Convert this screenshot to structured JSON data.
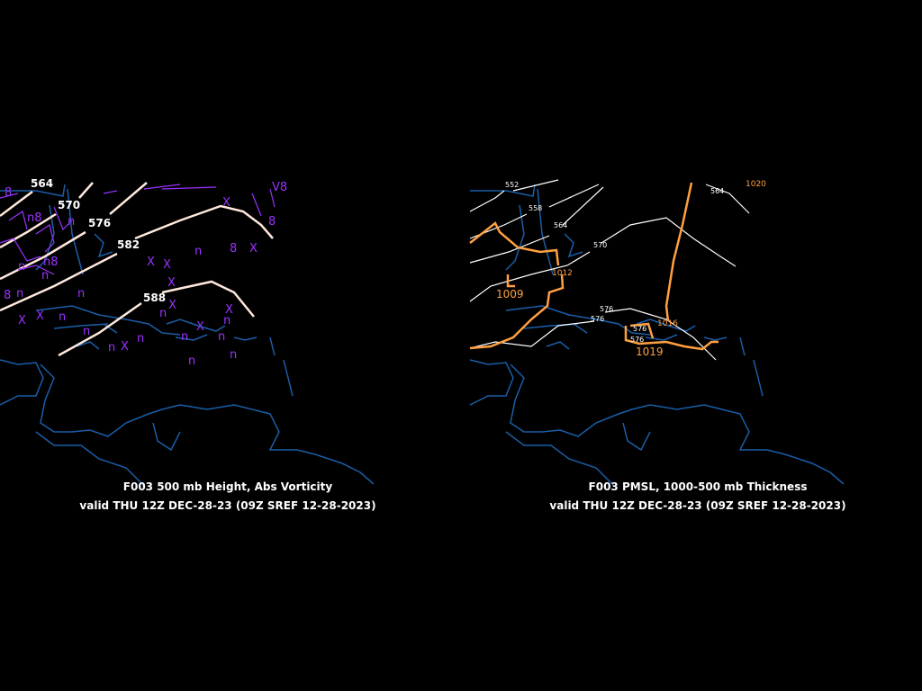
{
  "left_panel": {
    "title": "F003 500 mb Height, Abs Vorticity",
    "valid": "valid THU 12Z DEC-28-23 (09Z SREF 12-28-2023)",
    "height_labels": [
      "564",
      "570",
      "576",
      "582",
      "588"
    ],
    "vorticity_markers": [
      "n",
      "n",
      "n",
      "n",
      "n",
      "n",
      "n",
      "n",
      "n",
      "n",
      "n",
      "n",
      "n",
      "n",
      "n",
      "n",
      "X",
      "X",
      "X",
      "X",
      "X",
      "X",
      "X",
      "X",
      "X",
      "X",
      "X",
      "8",
      "8",
      "8",
      "8",
      "n8",
      "n8",
      "V8"
    ]
  },
  "right_panel": {
    "title": "F003 PMSL, 1000-500 mb Thickness",
    "valid": "valid THU 12Z DEC-28-23 (09Z SREF 12-28-2023)",
    "thickness_labels": [
      "552",
      "558",
      "564",
      "570",
      "576",
      "576",
      "564",
      "576",
      "576"
    ],
    "pressure_labels": [
      "1009",
      "1012",
      "1016",
      "1019",
      "1020"
    ]
  },
  "colors": {
    "background": "#000000",
    "coast": "#1a5ea8",
    "height": "#ffe8dc",
    "vorticity": "#9933ff",
    "pmsl": "#ffa040",
    "thickness": "#ffffff"
  }
}
